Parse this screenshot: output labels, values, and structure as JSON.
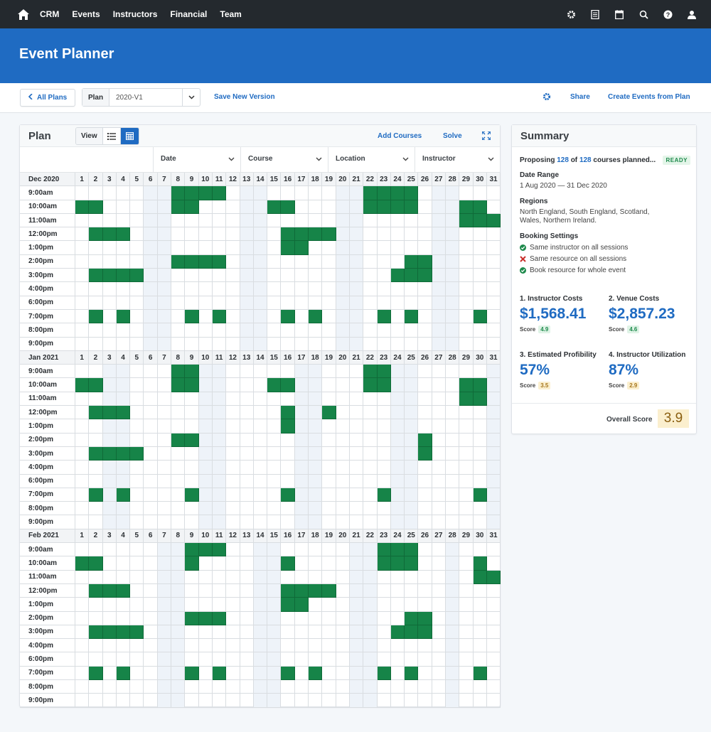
{
  "nav": {
    "links": [
      "CRM",
      "Events",
      "Instructors",
      "Financial",
      "Team"
    ],
    "icons": [
      "home-icon",
      "gear-icon",
      "document-icon",
      "calendar-icon",
      "search-icon",
      "help-icon",
      "user-icon"
    ]
  },
  "banner": {
    "title": "Event Planner"
  },
  "toolbar": {
    "back_label": "All Plans",
    "plan_label": "Plan",
    "plan_value": "2020-V1",
    "save_version": "Save New Version",
    "share": "Share",
    "create_events": "Create Events from Plan"
  },
  "plan": {
    "title": "Plan",
    "view_label": "View",
    "add_courses": "Add Courses",
    "solve": "Solve",
    "filters": [
      "Date",
      "Course",
      "Location",
      "Instructor"
    ],
    "times": [
      "9:00am",
      "10:00am",
      "11:00am",
      "12:00pm",
      "1:00pm",
      "2:00pm",
      "3:00pm",
      "4:00pm",
      "6:00pm",
      "7:00pm",
      "8:00pm",
      "9:00pm"
    ],
    "days": [
      "1",
      "2",
      "3",
      "4",
      "5",
      "6",
      "7",
      "8",
      "9",
      "10",
      "11",
      "12",
      "13",
      "14",
      "15",
      "16",
      "17",
      "18",
      "19",
      "20",
      "21",
      "22",
      "23",
      "24",
      "25",
      "26",
      "27",
      "28",
      "29",
      "30",
      "31"
    ],
    "months": [
      {
        "name": "Dec 2020",
        "weekend_days": [
          6,
          7,
          13,
          14,
          20,
          21,
          27,
          28
        ],
        "rows": [
          [
            8,
            9,
            10,
            11,
            22,
            23,
            24,
            25
          ],
          [
            1,
            2,
            8,
            9,
            15,
            16,
            22,
            23,
            24,
            25,
            29,
            30
          ],
          [
            29,
            30,
            31
          ],
          [
            2,
            3,
            4,
            16,
            17,
            18,
            19
          ],
          [
            16,
            17
          ],
          [
            8,
            9,
            10,
            11,
            25,
            26
          ],
          [
            2,
            3,
            4,
            5,
            24,
            25,
            26
          ],
          [],
          [],
          [
            2,
            4,
            9,
            11,
            16,
            18,
            23,
            25,
            30
          ],
          [],
          []
        ]
      },
      {
        "name": "Jan 2021",
        "weekend_days": [
          3,
          4,
          10,
          11,
          17,
          18,
          24,
          25,
          31
        ],
        "rows": [
          [
            8,
            9,
            22,
            23
          ],
          [
            1,
            2,
            8,
            9,
            15,
            16,
            22,
            23,
            29,
            30
          ],
          [
            29,
            30
          ],
          [
            2,
            3,
            4,
            16,
            19
          ],
          [
            16
          ],
          [
            8,
            9,
            26
          ],
          [
            2,
            3,
            4,
            5,
            26
          ],
          [],
          [],
          [
            2,
            4,
            9,
            16,
            23,
            30
          ],
          [],
          []
        ]
      },
      {
        "name": "Feb 2021",
        "weekend_days": [
          7,
          8,
          14,
          15,
          21,
          22,
          28
        ],
        "rows": [
          [
            9,
            10,
            11,
            23,
            24,
            25
          ],
          [
            1,
            2,
            9,
            16,
            23,
            24,
            25,
            30
          ],
          [
            30,
            31
          ],
          [
            2,
            3,
            4,
            16,
            17,
            18,
            19
          ],
          [
            16,
            17
          ],
          [
            9,
            10,
            11,
            25,
            26
          ],
          [
            2,
            3,
            4,
            5,
            24,
            25,
            26
          ],
          [],
          [],
          [
            2,
            4,
            9,
            11,
            16,
            18,
            23,
            25,
            30
          ],
          [],
          []
        ]
      }
    ]
  },
  "summary": {
    "title": "Summary",
    "proposing_prefix": "Proposing",
    "planned_count": "128",
    "of_text": "of",
    "total_count": "128",
    "proposing_suffix": "courses planned...",
    "status": "READY",
    "date_range_label": "Date Range",
    "date_range": "1 Aug 2020 — 31 Dec 2020",
    "regions_label": "Regions",
    "regions": "North England, South England, Scotland, Wales, Northern Ireland.",
    "booking_label": "Booking Settings",
    "booking": [
      {
        "text": "Same instructor on all sessions",
        "state": "check"
      },
      {
        "text": "Same resource on all sessions",
        "state": "cross"
      },
      {
        "text": "Book resource for whole event",
        "state": "check"
      }
    ],
    "metrics": [
      {
        "title": "1. Instructor Costs",
        "value": "$1,568.41",
        "score_label": "Score",
        "score": "4.9",
        "tone": "green"
      },
      {
        "title": "2. Venue Costs",
        "value": "$2,857.23",
        "score_label": "Score",
        "score": "4.6",
        "tone": "green"
      },
      {
        "title": "3. Estimated Profibility",
        "value": "57%",
        "score_label": "Score",
        "score": "3.5",
        "tone": "amber"
      },
      {
        "title": "4. Instructor Utilization",
        "value": "87%",
        "score_label": "Score",
        "score": "2.9",
        "tone": "amber"
      }
    ],
    "overall_label": "Overall Score",
    "overall_value": "3.9"
  },
  "colors": {
    "accent": "#1f6bc2",
    "nav": "#24292e",
    "booked": "#168448",
    "weekend": "#eef3f9"
  }
}
